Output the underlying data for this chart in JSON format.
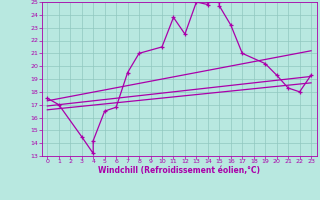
{
  "xlabel": "Windchill (Refroidissement éolien,°C)",
  "xlim": [
    -0.5,
    23.5
  ],
  "ylim": [
    13,
    25
  ],
  "yticks": [
    13,
    14,
    15,
    16,
    17,
    18,
    19,
    20,
    21,
    22,
    23,
    24,
    25
  ],
  "xticks": [
    0,
    1,
    2,
    3,
    4,
    5,
    6,
    7,
    8,
    9,
    10,
    11,
    12,
    13,
    14,
    15,
    16,
    17,
    18,
    19,
    20,
    21,
    22,
    23
  ],
  "line_color": "#aa00aa",
  "bg_color": "#b8e8e0",
  "grid_color": "#90c8c0",
  "main_line_x": [
    0,
    1,
    3,
    4,
    4,
    5,
    6,
    7,
    8,
    10,
    11,
    12,
    13,
    14,
    14,
    15,
    15,
    16,
    17,
    19,
    20,
    21,
    22,
    23
  ],
  "main_line_y": [
    17.5,
    17.0,
    14.5,
    13.2,
    14.2,
    16.5,
    16.8,
    19.5,
    21.0,
    21.5,
    23.8,
    22.5,
    25.0,
    24.8,
    25.0,
    25.0,
    24.7,
    23.2,
    21.0,
    20.2,
    19.3,
    18.3,
    18.0,
    19.3
  ],
  "reg_line1_x": [
    0,
    23
  ],
  "reg_line1_y": [
    16.9,
    19.2
  ],
  "reg_line2_x": [
    0,
    23
  ],
  "reg_line2_y": [
    17.3,
    21.2
  ],
  "reg_line3_x": [
    0,
    23
  ],
  "reg_line3_y": [
    16.6,
    18.7
  ]
}
